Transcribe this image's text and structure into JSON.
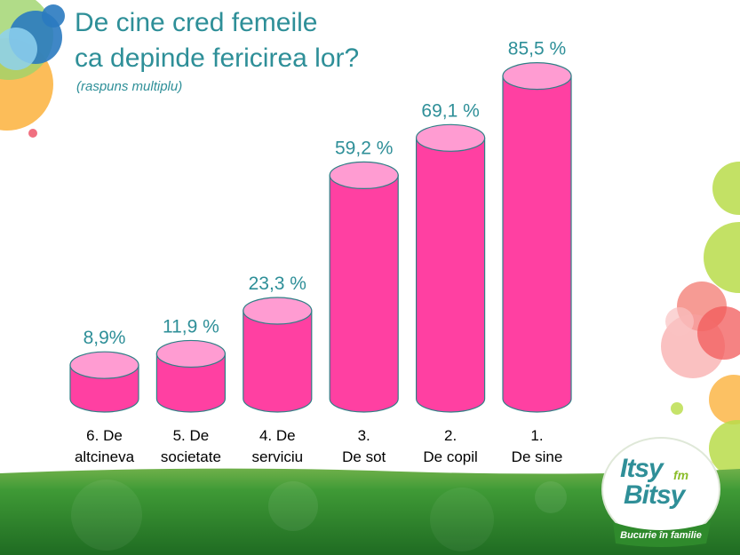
{
  "header": {
    "title_line1": "De cine cred femeile",
    "title_line2": "ca depinde fericirea lor?",
    "subtitle": "(raspuns multiplu)"
  },
  "chart_data": {
    "type": "bar",
    "title": "De cine cred femeile ca depinde fericirea lor?",
    "subtitle": "(raspuns multiplu)",
    "categories": [
      [
        "6. De",
        "altcineva"
      ],
      [
        "5. De",
        "societate"
      ],
      [
        "4. De",
        "serviciu"
      ],
      [
        "3.",
        "De sot"
      ],
      [
        "2.",
        "De copil"
      ],
      [
        "1.",
        "De sine"
      ]
    ],
    "values": [
      8.9,
      11.9,
      23.3,
      59.2,
      69.1,
      85.5
    ],
    "value_labels": [
      "8,9%",
      "11,9 %",
      "23,3 %",
      "59,2 %",
      "69,1 %",
      "85,5 %"
    ],
    "unit": "%",
    "bar_shape": "cylinder",
    "ylim": [
      0,
      100
    ],
    "grid": false,
    "legend": "none",
    "colors": {
      "bar": "#ff40a2",
      "bar_top": "#ff9cd2",
      "bar_stroke": "#2f7f86",
      "value_label": "#2e8f98",
      "category_label": "#000000"
    }
  },
  "logo": {
    "line1": "Itsy",
    "fm": "fm",
    "line2": "Bitsy",
    "tagline": "Bucurie în familie"
  },
  "colors": {
    "accent": "#2e8f98",
    "footer_green": "#2f8a2c"
  }
}
